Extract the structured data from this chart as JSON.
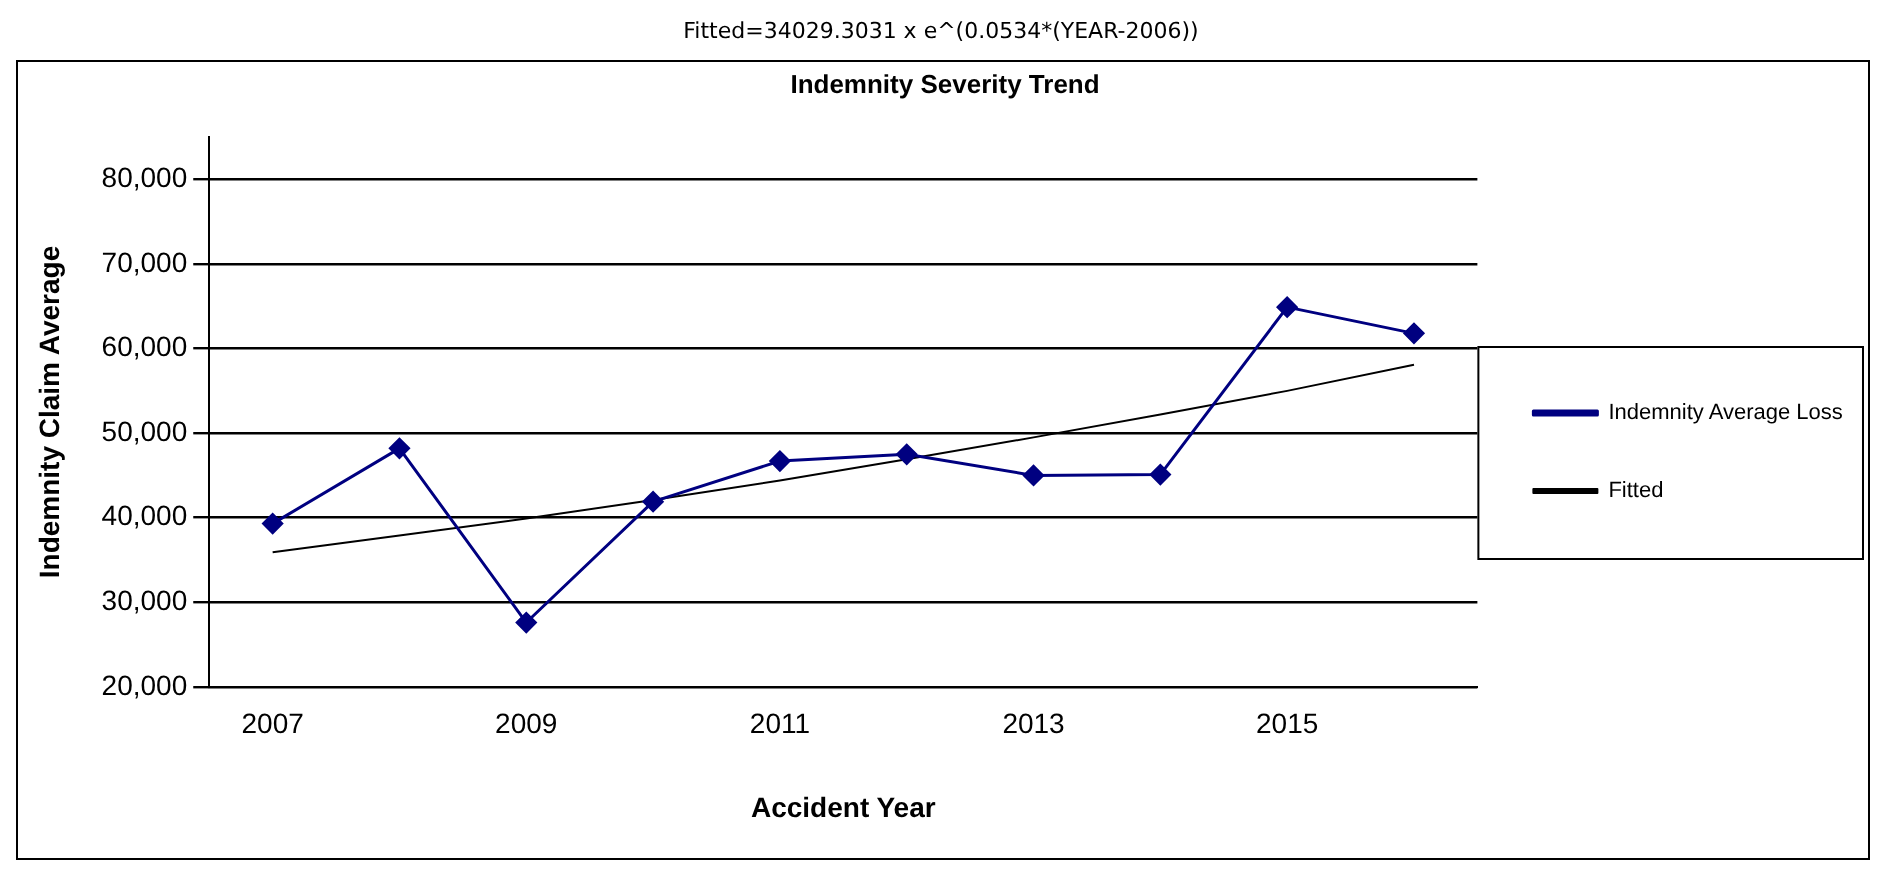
{
  "chart_data": {
    "type": "line",
    "title": "Indemnity Severity Trend",
    "annotations": [
      "Fitted=34029.3031 x e^(0.0534*(YEAR-2006))"
    ],
    "xlabel": "Accident Year",
    "ylabel": "Indemnity Claim Average",
    "categories": [
      "2007",
      null,
      "2009",
      null,
      "2011",
      null,
      "2013",
      null,
      "2015",
      null
    ],
    "series": [
      {
        "name": "Indemnity Average Loss",
        "color": "#000080",
        "marker": "diamond",
        "values": [
          39300,
          48200,
          27600,
          41900,
          46700,
          47500,
          45000,
          45100,
          64900,
          61800
        ]
      },
      {
        "name": "Fitted",
        "color": "#000000",
        "marker": "none",
        "values": [
          35900,
          37900,
          39900,
          42100,
          44400,
          46900,
          49500,
          52200,
          55000,
          58100
        ]
      }
    ],
    "ylim": [
      20000,
      85000
    ],
    "yticks": [
      {
        "value": 20000,
        "label": "20,000"
      },
      {
        "value": 30000,
        "label": "30,000"
      },
      {
        "value": 40000,
        "label": "40,000"
      },
      {
        "value": 50000,
        "label": "50,000"
      },
      {
        "value": 60000,
        "label": "60,000"
      },
      {
        "value": 70000,
        "label": "70,000"
      },
      {
        "value": 80000,
        "label": "80,000"
      }
    ],
    "grid": "y",
    "legend": "right"
  }
}
